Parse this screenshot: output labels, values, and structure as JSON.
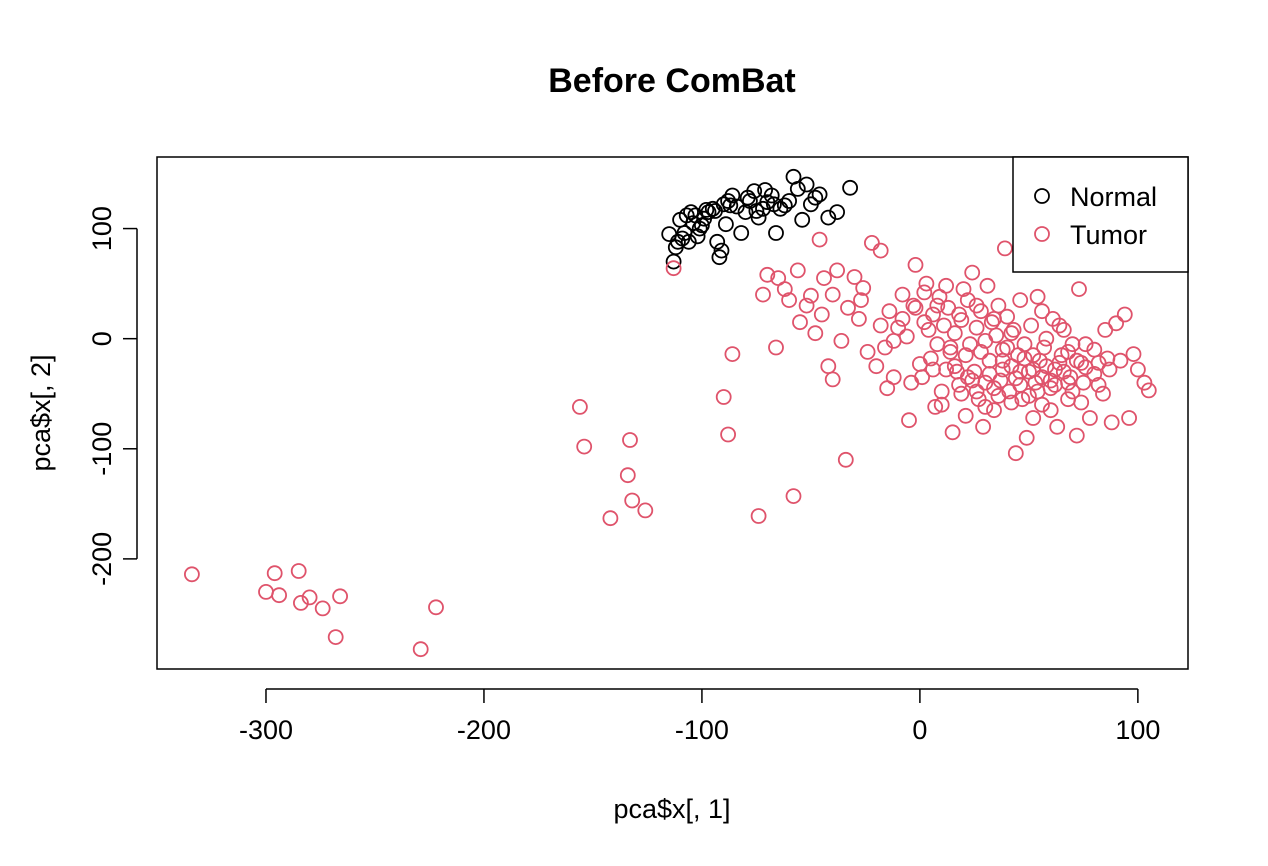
{
  "chart_data": {
    "type": "scatter",
    "title": "Before ComBat",
    "xlabel": "pca$x[, 1]",
    "ylabel": "pca$x[, 2]",
    "xlim": [
      -350,
      123
    ],
    "ylim": [
      -300,
      165
    ],
    "xticks": [
      -300,
      -200,
      -100,
      0,
      100
    ],
    "yticks": [
      -200,
      -100,
      0,
      100
    ],
    "grid": false,
    "legend_position": "top-right",
    "series": [
      {
        "name": "Normal",
        "color": "#000000",
        "points": [
          [
            -115,
            95
          ],
          [
            -112,
            83
          ],
          [
            -110,
            108
          ],
          [
            -108,
            96
          ],
          [
            -106,
            88
          ],
          [
            -104,
            105
          ],
          [
            -103,
            112
          ],
          [
            -101,
            100
          ],
          [
            -99,
            109
          ],
          [
            -97,
            115
          ],
          [
            -95,
            118
          ],
          [
            -93,
            88
          ],
          [
            -91,
            80
          ],
          [
            -90,
            122
          ],
          [
            -88,
            125
          ],
          [
            -86,
            130
          ],
          [
            -84,
            120
          ],
          [
            -82,
            96
          ],
          [
            -80,
            115
          ],
          [
            -78,
            125
          ],
          [
            -76,
            134
          ],
          [
            -74,
            110
          ],
          [
            -72,
            118
          ],
          [
            -70,
            124
          ],
          [
            -68,
            130
          ],
          [
            -66,
            96
          ],
          [
            -64,
            118
          ],
          [
            -62,
            121
          ],
          [
            -58,
            147
          ],
          [
            -56,
            136
          ],
          [
            -54,
            108
          ],
          [
            -52,
            140
          ],
          [
            -50,
            122
          ],
          [
            -48,
            128
          ],
          [
            -46,
            131
          ],
          [
            -42,
            110
          ],
          [
            -38,
            115
          ],
          [
            -32,
            137
          ],
          [
            -113,
            70
          ],
          [
            -111,
            88
          ],
          [
            -107,
            112
          ],
          [
            -105,
            115
          ],
          [
            -102,
            93
          ],
          [
            -100,
            103
          ],
          [
            -94,
            116
          ],
          [
            -89,
            104
          ],
          [
            -87,
            121
          ],
          [
            -79,
            128
          ],
          [
            -75,
            116
          ],
          [
            -71,
            135
          ],
          [
            -67,
            122
          ],
          [
            -60,
            125
          ],
          [
            -109,
            91
          ],
          [
            -98,
            117
          ],
          [
            -92,
            74
          ]
        ]
      },
      {
        "name": "Tumor",
        "color": "#DF536B",
        "points": [
          [
            -334,
            -214
          ],
          [
            -300,
            -230
          ],
          [
            -296,
            -213
          ],
          [
            -294,
            -233
          ],
          [
            -285,
            -211
          ],
          [
            -284,
            -240
          ],
          [
            -280,
            -235
          ],
          [
            -274,
            -245
          ],
          [
            -268,
            -271
          ],
          [
            -266,
            -234
          ],
          [
            -229,
            -282
          ],
          [
            -222,
            -244
          ],
          [
            -156,
            -62
          ],
          [
            -154,
            -98
          ],
          [
            -142,
            -163
          ],
          [
            -134,
            -124
          ],
          [
            -133,
            -92
          ],
          [
            -132,
            -147
          ],
          [
            -126,
            -156
          ],
          [
            -113,
            64
          ],
          [
            -90,
            -53
          ],
          [
            -88,
            -87
          ],
          [
            -86,
            -14
          ],
          [
            -74,
            -161
          ],
          [
            -72,
            40
          ],
          [
            -66,
            -8
          ],
          [
            -58,
            -143
          ],
          [
            -56,
            62
          ],
          [
            -50,
            39
          ],
          [
            -46,
            90
          ],
          [
            -42,
            -25
          ],
          [
            -40,
            -37
          ],
          [
            -38,
            62
          ],
          [
            -34,
            -110
          ],
          [
            -30,
            56
          ],
          [
            -26,
            46
          ],
          [
            -22,
            87
          ],
          [
            -18,
            80
          ],
          [
            -15,
            -45
          ],
          [
            -12,
            -35
          ],
          [
            -10,
            10
          ],
          [
            -8,
            40
          ],
          [
            -5,
            -74
          ],
          [
            -3,
            30
          ],
          [
            -2,
            67
          ],
          [
            0,
            -23
          ],
          [
            1,
            -35
          ],
          [
            2,
            15
          ],
          [
            3,
            50
          ],
          [
            4,
            8
          ],
          [
            5,
            -18
          ],
          [
            6,
            22
          ],
          [
            7,
            -62
          ],
          [
            8,
            -5
          ],
          [
            9,
            38
          ],
          [
            10,
            -48
          ],
          [
            11,
            12
          ],
          [
            12,
            -28
          ],
          [
            13,
            28
          ],
          [
            14,
            -8
          ],
          [
            15,
            -85
          ],
          [
            16,
            5
          ],
          [
            18,
            -42
          ],
          [
            19,
            17
          ],
          [
            20,
            45
          ],
          [
            21,
            -15
          ],
          [
            22,
            35
          ],
          [
            23,
            -5
          ],
          [
            24,
            60
          ],
          [
            25,
            -30
          ],
          [
            26,
            10
          ],
          [
            27,
            -55
          ],
          [
            28,
            25
          ],
          [
            29,
            -80
          ],
          [
            30,
            -2
          ],
          [
            31,
            48
          ],
          [
            32,
            -20
          ],
          [
            33,
            15
          ],
          [
            34,
            -65
          ],
          [
            35,
            3
          ],
          [
            36,
            30
          ],
          [
            37,
            -38
          ],
          [
            38,
            -10
          ],
          [
            39,
            82
          ],
          [
            40,
            20
          ],
          [
            41,
            -48
          ],
          [
            42,
            -25
          ],
          [
            43,
            8
          ],
          [
            44,
            -104
          ],
          [
            45,
            -15
          ],
          [
            46,
            35
          ],
          [
            47,
            -55
          ],
          [
            48,
            -5
          ],
          [
            49,
            -90
          ],
          [
            50,
            -30
          ],
          [
            51,
            12
          ],
          [
            52,
            -72
          ],
          [
            53,
            -40
          ],
          [
            54,
            38
          ],
          [
            55,
            -20
          ],
          [
            56,
            -60
          ],
          [
            57,
            -8
          ],
          [
            58,
            0
          ],
          [
            60,
            -45
          ],
          [
            61,
            18
          ],
          [
            62,
            -28
          ],
          [
            63,
            -80
          ],
          [
            65,
            -15
          ],
          [
            66,
            8
          ],
          [
            68,
            -55
          ],
          [
            69,
            -35
          ],
          [
            70,
            -5
          ],
          [
            72,
            -88
          ],
          [
            73,
            45
          ],
          [
            74,
            -22
          ],
          [
            75,
            -40
          ],
          [
            78,
            -72
          ],
          [
            80,
            -10
          ],
          [
            82,
            -42
          ],
          [
            85,
            8
          ],
          [
            87,
            -28
          ],
          [
            88,
            -76
          ],
          [
            90,
            14
          ],
          [
            92,
            -20
          ],
          [
            94,
            22
          ],
          [
            96,
            -72
          ],
          [
            98,
            -14
          ],
          [
            100,
            -28
          ],
          [
            103,
            -40
          ],
          [
            105,
            -47
          ],
          [
            -65,
            55
          ],
          [
            -60,
            35
          ],
          [
            -55,
            15
          ],
          [
            -48,
            5
          ],
          [
            -45,
            22
          ],
          [
            -36,
            -2
          ],
          [
            -28,
            18
          ],
          [
            -24,
            -12
          ],
          [
            -20,
            -25
          ],
          [
            -16,
            -8
          ],
          [
            -6,
            2
          ],
          [
            -4,
            -40
          ],
          [
            10,
            -60
          ],
          [
            14,
            -12
          ],
          [
            17,
            -30
          ],
          [
            19,
            -50
          ],
          [
            21,
            -70
          ],
          [
            24,
            -38
          ],
          [
            26,
            -48
          ],
          [
            28,
            -12
          ],
          [
            30,
            -62
          ],
          [
            32,
            -32
          ],
          [
            34,
            -45
          ],
          [
            36,
            -52
          ],
          [
            38,
            -20
          ],
          [
            40,
            -8
          ],
          [
            42,
            -58
          ],
          [
            44,
            -36
          ],
          [
            46,
            -42
          ],
          [
            48,
            -18
          ],
          [
            50,
            -52
          ],
          [
            52,
            -28
          ],
          [
            54,
            -48
          ],
          [
            56,
            -35
          ],
          [
            58,
            -25
          ],
          [
            60,
            -65
          ],
          [
            62,
            -42
          ],
          [
            64,
            -22
          ],
          [
            66,
            -30
          ],
          [
            68,
            -12
          ],
          [
            70,
            -48
          ],
          [
            72,
            -20
          ],
          [
            74,
            -58
          ],
          [
            76,
            -26
          ],
          [
            80,
            -32
          ],
          [
            84,
            -50
          ],
          [
            86,
            -18
          ],
          [
            -70,
            58
          ],
          [
            -62,
            45
          ],
          [
            -52,
            30
          ],
          [
            -44,
            55
          ],
          [
            -40,
            40
          ],
          [
            -33,
            28
          ],
          [
            -27,
            35
          ],
          [
            -18,
            12
          ],
          [
            -14,
            25
          ],
          [
            -12,
            -2
          ],
          [
            -8,
            18
          ],
          [
            -2,
            28
          ],
          [
            2,
            42
          ],
          [
            6,
            -28
          ],
          [
            8,
            30
          ],
          [
            12,
            48
          ],
          [
            16,
            -25
          ],
          [
            18,
            22
          ],
          [
            22,
            -35
          ],
          [
            26,
            30
          ],
          [
            30,
            -40
          ],
          [
            34,
            18
          ],
          [
            38,
            -28
          ],
          [
            42,
            5
          ],
          [
            46,
            -30
          ],
          [
            52,
            -15
          ],
          [
            56,
            25
          ],
          [
            60,
            -38
          ],
          [
            64,
            12
          ],
          [
            68,
            -40
          ],
          [
            76,
            -5
          ],
          [
            82,
            -22
          ]
        ]
      }
    ]
  }
}
